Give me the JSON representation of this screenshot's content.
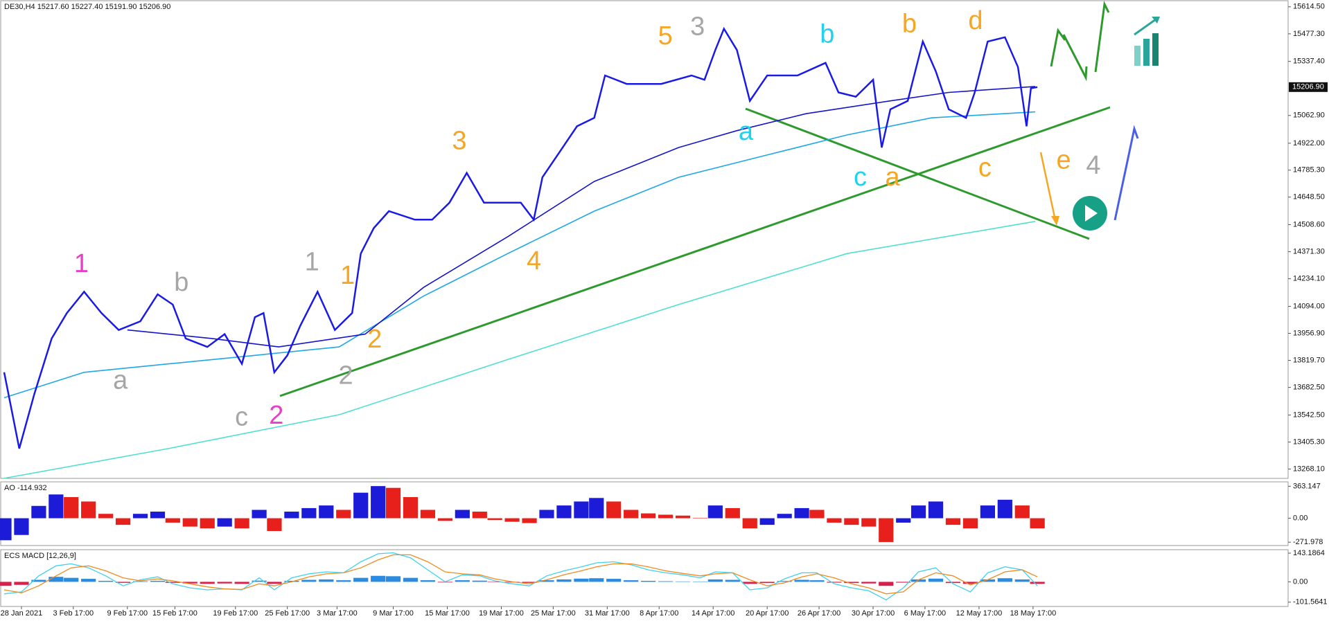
{
  "chart_data": [
    {
      "type": "line",
      "title": "DE30,H4  15217.60 15227.40 15191.90 15206.90",
      "xlim": [
        0,
        594
      ],
      "ylim": [
        13220.7,
        15649
      ],
      "xticks": [
        {
          "value": 8,
          "label": "28 Jan 2021"
        },
        {
          "value": 32,
          "label": "3 Feb 17:00"
        },
        {
          "value": 57,
          "label": "9 Feb 17:00"
        },
        {
          "value": 79,
          "label": "15 Feb 17:00"
        },
        {
          "value": 107,
          "label": "19 Feb 17:00"
        },
        {
          "value": 131,
          "label": "25 Feb 17:00"
        },
        {
          "value": 154,
          "label": "3 Mar 17:00"
        },
        {
          "value": 180,
          "label": "9 Mar 17:00"
        },
        {
          "value": 205,
          "label": "15 Mar 17:00"
        },
        {
          "value": 230,
          "label": "19 Mar 17:00"
        },
        {
          "value": 254,
          "label": "25 Mar 17:00"
        },
        {
          "value": 279,
          "label": "31 Mar 17:00"
        },
        {
          "value": 303,
          "label": "8 Apr 17:00"
        },
        {
          "value": 328,
          "label": "14 Apr 17:00"
        },
        {
          "value": 353,
          "label": "20 Apr 17:00"
        },
        {
          "value": 377,
          "label": "26 Apr 17:00"
        },
        {
          "value": 402,
          "label": "30 Apr 17:00"
        },
        {
          "value": 426,
          "label": "6 May 17:00"
        },
        {
          "value": 451,
          "label": "12 May 17:00"
        },
        {
          "value": 476,
          "label": "18 May 17:00"
        }
      ],
      "yticks": [
        {
          "value": 15614.5,
          "label": "15614.50"
        },
        {
          "value": 15477.3,
          "label": "15477.30"
        },
        {
          "value": 15337.4,
          "label": "15337.40"
        },
        {
          "value": 15062.9,
          "label": "15062.90"
        },
        {
          "value": 14922,
          "label": "14922.00"
        },
        {
          "value": 14785.3,
          "label": "14785.30"
        },
        {
          "value": 14648.5,
          "label": "14648.50"
        },
        {
          "value": 14508.6,
          "label": "14508.60"
        },
        {
          "value": 14371.3,
          "label": "14371.30"
        },
        {
          "value": 14234.1,
          "label": "14234.10"
        },
        {
          "value": 14094,
          "label": "14094.00"
        },
        {
          "value": 13956.9,
          "label": "13956.90"
        },
        {
          "value": 13819.7,
          "label": "13819.70"
        },
        {
          "value": 13682.5,
          "label": "13682.50"
        },
        {
          "value": 13542.5,
          "label": "13542.50"
        },
        {
          "value": 13405.3,
          "label": "13405.30"
        },
        {
          "value": 13268.1,
          "label": "13268.10"
        }
      ],
      "last_price": {
        "value": 15206.9,
        "label": "15206.90"
      },
      "series": [
        {
          "color": "#4fe0d0",
          "x": [
            0,
            76,
            155,
            233,
            312,
            390,
            477
          ],
          "values": [
            13221,
            13372,
            13544,
            13824,
            14103,
            14362,
            14525
          ]
        },
        {
          "color": "#1ea7e8",
          "x": [
            0,
            37,
            76,
            116,
            155,
            194,
            233,
            273,
            312,
            351,
            390,
            429,
            477
          ],
          "values": [
            13630,
            13759,
            13802,
            13845,
            13888,
            14146,
            14362,
            14577,
            14749,
            14857,
            14964,
            15051,
            15081
          ]
        },
        {
          "color": "#1414c8",
          "x": [
            57,
            96,
            127,
            167,
            194,
            233,
            273,
            312,
            339,
            371,
            410,
            437,
            477
          ],
          "values": [
            13974,
            13931,
            13888,
            13953,
            14190,
            14448,
            14728,
            14900,
            14986,
            15072,
            15137,
            15180,
            15210
          ]
        },
        {
          "color": "#1a1ae6",
          "x": [
            0,
            7,
            14,
            22,
            29,
            37,
            45,
            53,
            63,
            71,
            78,
            84,
            94,
            102,
            110,
            116,
            120,
            125,
            131,
            137,
            145,
            153,
            161,
            165,
            171,
            178,
            190,
            198,
            206,
            214,
            222,
            229,
            239,
            245,
            249,
            257,
            265,
            273,
            278,
            288,
            304,
            318,
            324,
            329,
            333,
            339,
            345,
            353,
            367,
            380,
            386,
            394,
            402,
            406,
            410,
            418,
            425,
            431,
            437,
            445,
            449,
            455,
            463,
            469,
            473,
            475,
            478
          ],
          "values": [
            13759,
            13372,
            13651,
            13931,
            14060,
            14168,
            14060,
            13974,
            14018,
            14155,
            14103,
            13931,
            13888,
            13953,
            13802,
            14039,
            14060,
            13759,
            13845,
            13996,
            14168,
            13974,
            14060,
            14362,
            14491,
            14577,
            14534,
            14534,
            14620,
            14771,
            14620,
            14620,
            14620,
            14534,
            14749,
            14878,
            15008,
            15051,
            15266,
            15223,
            15223,
            15266,
            15244,
            15395,
            15503,
            15395,
            15137,
            15266,
            15266,
            15330,
            15180,
            15158,
            15244,
            14900,
            15094,
            15137,
            15438,
            15287,
            15094,
            15051,
            15180,
            15438,
            15460,
            15309,
            15008,
            15201,
            15207
          ]
        }
      ],
      "annotations": [
        {
          "text": "1",
          "color": "#e83fc9"
        },
        {
          "text": "b",
          "color": "#a6a6a6"
        },
        {
          "text": "1",
          "color": "#a6a6a6"
        },
        {
          "text": "1",
          "color": "#f5a623"
        },
        {
          "text": "a",
          "color": "#a6a6a6"
        },
        {
          "text": "2",
          "color": "#f5a623"
        },
        {
          "text": "2",
          "color": "#a6a6a6"
        },
        {
          "text": "c",
          "color": "#a6a6a6"
        },
        {
          "text": "2",
          "color": "#e83fc9"
        },
        {
          "text": "3",
          "color": "#f5a623"
        },
        {
          "text": "4",
          "color": "#f5a623"
        },
        {
          "text": "5",
          "color": "#f5a623"
        },
        {
          "text": "3",
          "color": "#a6a6a6"
        },
        {
          "text": "a",
          "color": "#1fd3f0"
        },
        {
          "text": "b",
          "color": "#1fd3f0"
        },
        {
          "text": "c",
          "color": "#1fd3f0"
        },
        {
          "text": "a",
          "color": "#f5a623"
        },
        {
          "text": "b",
          "color": "#f5a623"
        },
        {
          "text": "c",
          "color": "#f5a623"
        },
        {
          "text": "d",
          "color": "#f5a623"
        },
        {
          "text": "e",
          "color": "#f5a623"
        },
        {
          "text": "4",
          "color": "#a6a6a6"
        }
      ]
    },
    {
      "type": "bar",
      "title": "AO -114.932",
      "xlim": [
        0,
        594
      ],
      "ylim": [
        -310,
        421
      ],
      "yticks": [
        363.147,
        {
          "value": 0,
          "label": "0.00"
        },
        -271.978
      ],
      "up_color": "#1c1cd8",
      "down_color": "#e8201b",
      "x": [
        0,
        8,
        16,
        24,
        31,
        39,
        47,
        55,
        63,
        71,
        78,
        86,
        94,
        102,
        110,
        118,
        125,
        133,
        141,
        149,
        157,
        165,
        173,
        180,
        188,
        196,
        204,
        212,
        220,
        227,
        235,
        243,
        251,
        259,
        267,
        274,
        282,
        290,
        298,
        306,
        314,
        322,
        329,
        337,
        345,
        353,
        361,
        369,
        376,
        384,
        392,
        400,
        408,
        416,
        423,
        431,
        439,
        447,
        455,
        463,
        471,
        478
      ],
      "values": [
        -250,
        -190,
        140,
        270,
        240,
        190,
        50,
        -75,
        50,
        75,
        -50,
        -95,
        -115,
        -95,
        -115,
        95,
        -145,
        75,
        115,
        145,
        95,
        290,
        365,
        345,
        240,
        95,
        -30,
        95,
        75,
        -20,
        -40,
        -55,
        95,
        145,
        190,
        230,
        190,
        95,
        55,
        40,
        30,
        5,
        145,
        115,
        -115,
        -75,
        50,
        115,
        95,
        -50,
        -75,
        -95,
        -270,
        -50,
        145,
        190,
        -75,
        -115,
        145,
        210,
        145,
        -115
      ]
    },
    {
      "type": "bar",
      "title": "ECS MACD [12,26,9]",
      "xlim": [
        0,
        594
      ],
      "ylim": [
        -123,
        164
      ],
      "yticks": [
        143.1864,
        {
          "value": 0,
          "label": "0.00"
        },
        -101.5641
      ],
      "pos_color": "#2a8be0",
      "neg_color": "#d9204a",
      "x": [
        0,
        8,
        16,
        24,
        31,
        39,
        47,
        55,
        63,
        71,
        78,
        86,
        94,
        102,
        110,
        118,
        125,
        133,
        141,
        149,
        157,
        165,
        173,
        180,
        188,
        196,
        204,
        212,
        220,
        227,
        235,
        243,
        251,
        259,
        267,
        274,
        282,
        290,
        298,
        306,
        314,
        322,
        329,
        337,
        345,
        353,
        361,
        369,
        376,
        384,
        392,
        400,
        408,
        416,
        423,
        431,
        439,
        447,
        455,
        463,
        471,
        478
      ],
      "values": [
        -20,
        -15,
        10,
        25,
        20,
        15,
        5,
        -5,
        3,
        5,
        -5,
        -8,
        -10,
        -8,
        -10,
        6,
        -10,
        5,
        10,
        12,
        8,
        20,
        30,
        28,
        20,
        8,
        -3,
        8,
        6,
        -2,
        -3,
        -5,
        8,
        12,
        16,
        18,
        15,
        8,
        5,
        3,
        2,
        0,
        12,
        10,
        -10,
        -6,
        4,
        10,
        8,
        -4,
        -6,
        -8,
        -20,
        -4,
        12,
        16,
        -6,
        -10,
        12,
        18,
        12,
        -10
      ],
      "series": [
        {
          "color": "#3fd0f0",
          "values": [
            -60,
            -50,
            30,
            80,
            90,
            70,
            30,
            -20,
            10,
            25,
            -10,
            -30,
            -40,
            -35,
            -40,
            20,
            -40,
            20,
            40,
            50,
            45,
            100,
            140,
            145,
            120,
            60,
            0,
            35,
            30,
            5,
            -10,
            -20,
            30,
            55,
            75,
            95,
            100,
            85,
            60,
            45,
            35,
            20,
            50,
            45,
            -40,
            -30,
            15,
            45,
            45,
            -10,
            -30,
            -45,
            -90,
            -30,
            50,
            70,
            -10,
            -50,
            45,
            75,
            60,
            -20
          ]
        },
        {
          "color": "#f08a1c",
          "values": [
            -40,
            -55,
            -20,
            30,
            70,
            80,
            55,
            20,
            5,
            15,
            5,
            -10,
            -25,
            -35,
            -38,
            -10,
            -20,
            0,
            25,
            40,
            45,
            70,
            110,
            135,
            135,
            100,
            50,
            40,
            35,
            15,
            0,
            -10,
            10,
            35,
            55,
            75,
            90,
            90,
            75,
            55,
            42,
            30,
            40,
            45,
            10,
            -20,
            -5,
            25,
            40,
            20,
            -10,
            -30,
            -60,
            -50,
            10,
            45,
            30,
            -15,
            10,
            50,
            60,
            25
          ]
        }
      ]
    }
  ]
}
